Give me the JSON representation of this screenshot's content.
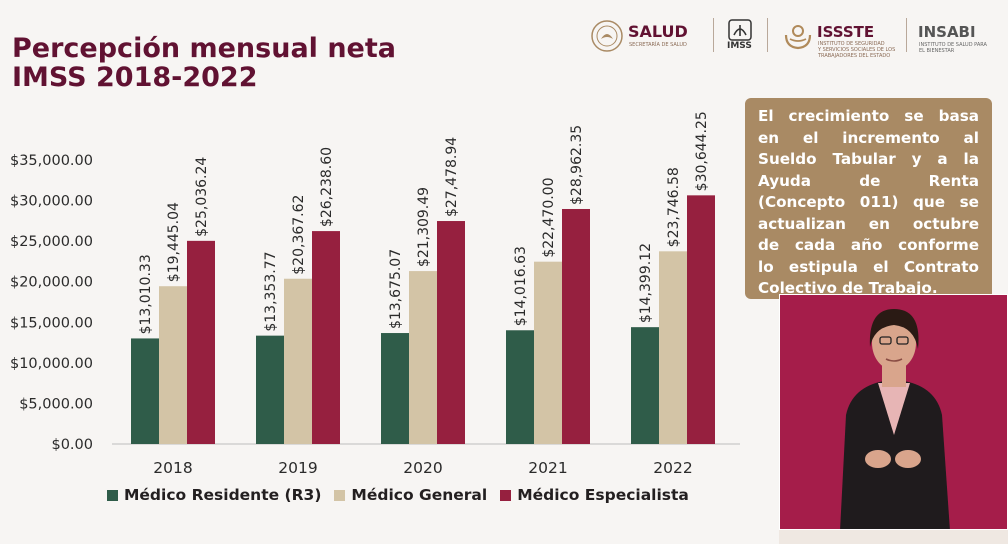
{
  "slide": {
    "title_line1": "Percepción mensual neta",
    "title_line2": "IMSS 2018-2022"
  },
  "logos": {
    "salud": {
      "name": "SALUD",
      "subtitle": "SECRETARÍA DE SALUD"
    },
    "imss": {
      "name": "IMSS"
    },
    "issste": {
      "name": "ISSSTE",
      "subtitle_lines": [
        "INSTITUTO DE SEGURIDAD",
        "Y SERVICIOS SOCIALES DE LOS",
        "TRABAJADORES DEL ESTADO"
      ]
    },
    "insabi": {
      "name": "INSABI",
      "subtitle_lines": [
        "INSTITUTO DE SALUD PARA",
        "EL BIENESTAR"
      ]
    }
  },
  "info_box": {
    "lines": [
      "El crecimiento se basa",
      "en el incremento al",
      "Sueldo Tabular y a la",
      "Ayuda de Renta",
      "(Concepto 011) que se",
      "actualizan en octubre",
      "de cada año conforme",
      "lo estipula el Contrato",
      "Colectivo de Trabajo."
    ]
  },
  "colors": {
    "title": "#611232",
    "residente": "#2f5c49",
    "general": "#d3c4a6",
    "especialista": "#96203f",
    "info_box": "#a98a64",
    "interpreter_bg": "#a51d4a"
  },
  "chart_data": {
    "type": "bar",
    "categories": [
      "2018",
      "2019",
      "2020",
      "2021",
      "2022"
    ],
    "series": [
      {
        "name": "Médico Residente (R3)",
        "values": [
          13010.33,
          13353.77,
          13675.07,
          14016.63,
          14399.12
        ],
        "labels": [
          "$13,010.33",
          "$13,353.77",
          "$13,675.07",
          "$14,016.63",
          "$14,399.12"
        ],
        "color": "#2f5c49"
      },
      {
        "name": "Médico General",
        "values": [
          19445.04,
          20367.62,
          21309.49,
          22470.0,
          23746.58
        ],
        "labels": [
          "$19,445.04",
          "$20,367.62",
          "$21,309.49",
          "$22,470.00",
          "$23,746.58"
        ],
        "color": "#d3c4a6"
      },
      {
        "name": "Médico Especialista",
        "values": [
          25036.24,
          26238.6,
          27478.94,
          28962.35,
          30644.25
        ],
        "labels": [
          "$25,036.24",
          "$26,238.60",
          "$27,478.94",
          "$28,962.35",
          "$30,644.25"
        ],
        "color": "#96203f"
      }
    ],
    "yticks": [
      0,
      5000,
      10000,
      15000,
      20000,
      25000,
      30000,
      35000
    ],
    "ytick_labels": [
      "$0.00",
      "$5,000.00",
      "$10,000.00",
      "$15,000.00",
      "$20,000.00",
      "$25,000.00",
      "$30,000.00",
      "$35,000.00"
    ],
    "ylim": [
      0,
      35000
    ],
    "grid": false,
    "legend_position": "bottom",
    "xlabel": "",
    "ylabel": ""
  }
}
